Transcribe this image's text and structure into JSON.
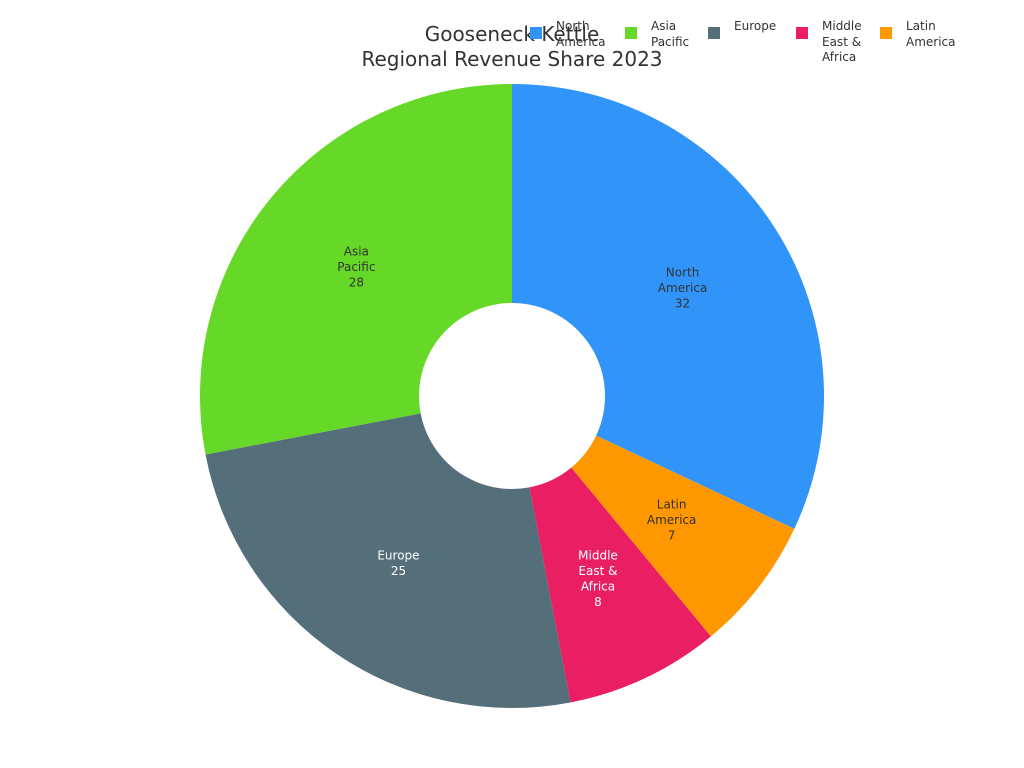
{
  "chart_data": {
    "type": "pie",
    "title": "Gooseneck Kettle",
    "subtitle": "Regional Revenue Share 2023",
    "donut": true,
    "legend_position": "top-right",
    "slices": [
      {
        "label": "North America",
        "value": 32,
        "color": "#3094f8"
      },
      {
        "label": "Latin America",
        "value": 7,
        "color": "#ff9800"
      },
      {
        "label": "Middle East & Africa",
        "value": 8,
        "color": "#e91e63"
      },
      {
        "label": "Europe",
        "value": 25,
        "color": "#546e7a"
      },
      {
        "label": "Asia Pacific",
        "value": 28,
        "color": "#66d928"
      }
    ],
    "legend_order": [
      "North America",
      "Asia Pacific",
      "Europe",
      "Middle East & Africa",
      "Latin America"
    ]
  }
}
